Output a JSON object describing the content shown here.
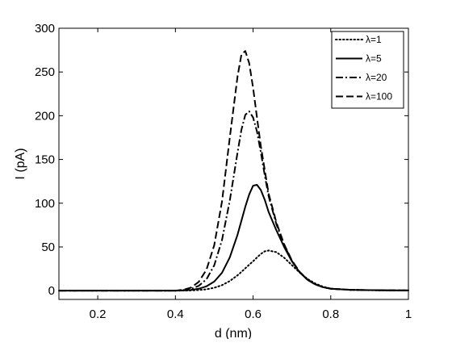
{
  "chart_data": {
    "type": "line",
    "title": "",
    "xlabel": "d (nm)",
    "ylabel": "I (pA)",
    "xlim": [
      0.1,
      1.0
    ],
    "ylim": [
      -10,
      300
    ],
    "xticks": [
      0.2,
      0.4,
      0.6,
      0.8,
      1.0
    ],
    "xtick_labels": [
      "0.2",
      "0.4",
      "0.6",
      "0.8",
      "1"
    ],
    "yticks": [
      0,
      50,
      100,
      150,
      200,
      250,
      300
    ],
    "ytick_labels": [
      "0",
      "50",
      "100",
      "150",
      "200",
      "250",
      "300"
    ],
    "grid": false,
    "legend_position": "top-right",
    "x": [
      0.1,
      0.2,
      0.3,
      0.35,
      0.4,
      0.42,
      0.44,
      0.46,
      0.48,
      0.5,
      0.52,
      0.54,
      0.56,
      0.57,
      0.58,
      0.59,
      0.6,
      0.61,
      0.62,
      0.63,
      0.64,
      0.66,
      0.68,
      0.7,
      0.72,
      0.74,
      0.76,
      0.78,
      0.8,
      0.85,
      0.9,
      0.95,
      1.0
    ],
    "series": [
      {
        "name": "λ=1",
        "line_style": "dotted",
        "values": [
          0,
          0,
          0,
          0,
          0,
          0.1,
          0.3,
          0.7,
          1.6,
          3.3,
          6.3,
          11.0,
          17.6,
          21.5,
          25.6,
          29.7,
          33.6,
          37.9,
          42.0,
          45.0,
          45.9,
          44.0,
          37.7,
          29.2,
          20.7,
          13.5,
          8.2,
          4.6,
          2.4,
          0.9,
          0.5,
          0.3,
          0.2
        ]
      },
      {
        "name": "λ=5",
        "line_style": "solid",
        "values": [
          0,
          0,
          0,
          0,
          0,
          0.3,
          0.9,
          2.2,
          5.0,
          10.4,
          20.5,
          38.0,
          64.0,
          80.0,
          96.0,
          110.0,
          120.0,
          121.0,
          115.0,
          104.0,
          90.0,
          69.0,
          50.0,
          33.5,
          21.0,
          12.5,
          7.2,
          4.0,
          2.2,
          1.0,
          0.6,
          0.4,
          0.3
        ]
      },
      {
        "name": "λ=20",
        "line_style": "dash-dot",
        "values": [
          0,
          0,
          0,
          0,
          0,
          0.6,
          2.0,
          5.5,
          13.0,
          29.0,
          58.0,
          103.0,
          158.0,
          184.0,
          201.0,
          205.0,
          198.0,
          182.0,
          158.0,
          132.0,
          108.0,
          76.0,
          52.0,
          34.0,
          21.0,
          12.5,
          7.2,
          4.0,
          2.2,
          1.0,
          0.6,
          0.4,
          0.3
        ]
      },
      {
        "name": "λ=100",
        "line_style": "dashed",
        "values": [
          0,
          0,
          0,
          0,
          0,
          1.0,
          3.5,
          10.0,
          24.0,
          52.0,
          102.0,
          175.0,
          245.0,
          270.0,
          274.0,
          260.0,
          232.0,
          198.0,
          165.0,
          138.0,
          111.0,
          78.0,
          53.0,
          34.5,
          21.5,
          12.8,
          7.3,
          4.0,
          2.2,
          1.0,
          0.6,
          0.4,
          0.3
        ]
      }
    ]
  }
}
